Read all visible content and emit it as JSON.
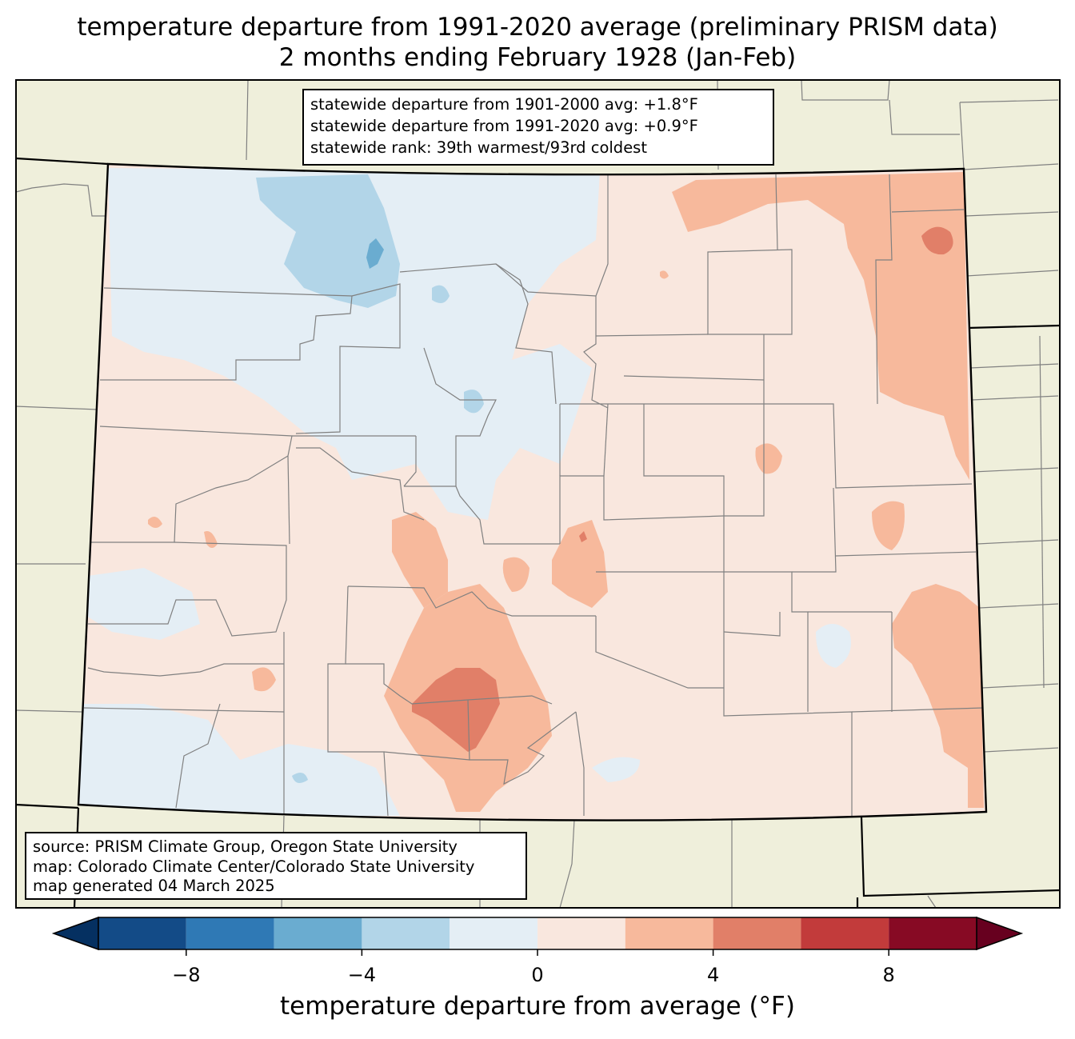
{
  "title": {
    "line1": "temperature departure from 1991-2020 average (preliminary PRISM data)",
    "line2": "2 months ending February 1928 (Jan-Feb)"
  },
  "stats": {
    "line1": "statewide departure from 1901-2000 avg: +1.8°F",
    "line2": "statewide departure from 1991-2020 avg: +0.9°F",
    "line3": "statewide rank: 39th warmest/93rd coldest"
  },
  "credits": {
    "line1": "source: PRISM Climate Group, Oregon State University",
    "line2": "map: Colorado Climate Center/Colorado State University",
    "line3": "map generated 04 March 2025"
  },
  "colorbar": {
    "label": "temperature departure from average (°F)",
    "ticks": [
      {
        "value": -8,
        "label": "−8"
      },
      {
        "value": -4,
        "label": "−4"
      },
      {
        "value": 0,
        "label": "0"
      },
      {
        "value": 4,
        "label": "4"
      },
      {
        "value": 8,
        "label": "8"
      }
    ],
    "range": [
      -10,
      10
    ],
    "bins": [
      {
        "from": -10,
        "to": -8,
        "color": "#134b87"
      },
      {
        "from": -8,
        "to": -6,
        "color": "#2f79b5"
      },
      {
        "from": -6,
        "to": -4,
        "color": "#6aacd0"
      },
      {
        "from": -4,
        "to": -2,
        "color": "#b2d5e8"
      },
      {
        "from": -2,
        "to": 0,
        "color": "#e4eef5"
      },
      {
        "from": 0,
        "to": 2,
        "color": "#f9e7de"
      },
      {
        "from": 2,
        "to": 4,
        "color": "#f7b99c"
      },
      {
        "from": 4,
        "to": 6,
        "color": "#e17f68"
      },
      {
        "from": 6,
        "to": 8,
        "color": "#c23b3b"
      },
      {
        "from": 8,
        "to": 10,
        "color": "#870a24"
      }
    ],
    "under_color": "#053061",
    "over_color": "#67001f"
  },
  "map_colors": {
    "land_outside": "#efefdb",
    "state_fill": "#f9e7de",
    "state_border": "#000000",
    "county_border": "#808080"
  }
}
